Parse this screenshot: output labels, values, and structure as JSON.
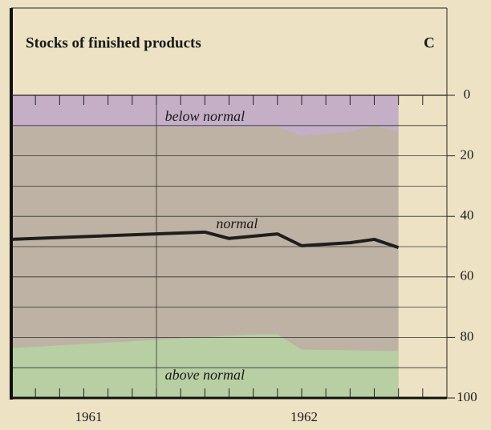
{
  "chart_data": {
    "type": "line",
    "title": "Stocks of finished products",
    "corner_label": "C",
    "xlim": [
      0,
      18
    ],
    "xticks": [
      {
        "value": 3.2,
        "label": "1961"
      },
      {
        "value": 12.1,
        "label": "1962"
      }
    ],
    "xminorticks": [
      1,
      2,
      3,
      4,
      5,
      6,
      7,
      8,
      9,
      10,
      11,
      12,
      13,
      14,
      15,
      16,
      17
    ],
    "xgridlines": [
      6
    ],
    "ylim": [
      0,
      100
    ],
    "y_inverted": true,
    "yticks": [
      0,
      20,
      40,
      60,
      80,
      100
    ],
    "ygridlines": [
      10,
      20,
      30,
      40,
      50,
      60,
      70,
      80,
      90
    ],
    "below_normal": {
      "label": "below normal",
      "color": "#c4afc7",
      "x": [
        0,
        11,
        12,
        14,
        15,
        16
      ],
      "values": [
        10.5,
        10.5,
        13.5,
        12,
        10,
        12
      ]
    },
    "above_normal": {
      "label": "above normal",
      "color": "#b8cea3",
      "x": [
        0,
        10,
        11,
        12,
        16
      ],
      "values": [
        83.5,
        79,
        79,
        84,
        84.5
      ]
    },
    "normal_color": "#bdb2a3",
    "series": [
      {
        "name": "normal",
        "color": "#1e1e1e",
        "x": [
          0,
          8,
          9,
          11,
          12,
          14,
          15,
          16
        ],
        "values": [
          47.6,
          45.2,
          47.3,
          45.8,
          49.7,
          48.7,
          47.6,
          50.3
        ]
      }
    ]
  }
}
